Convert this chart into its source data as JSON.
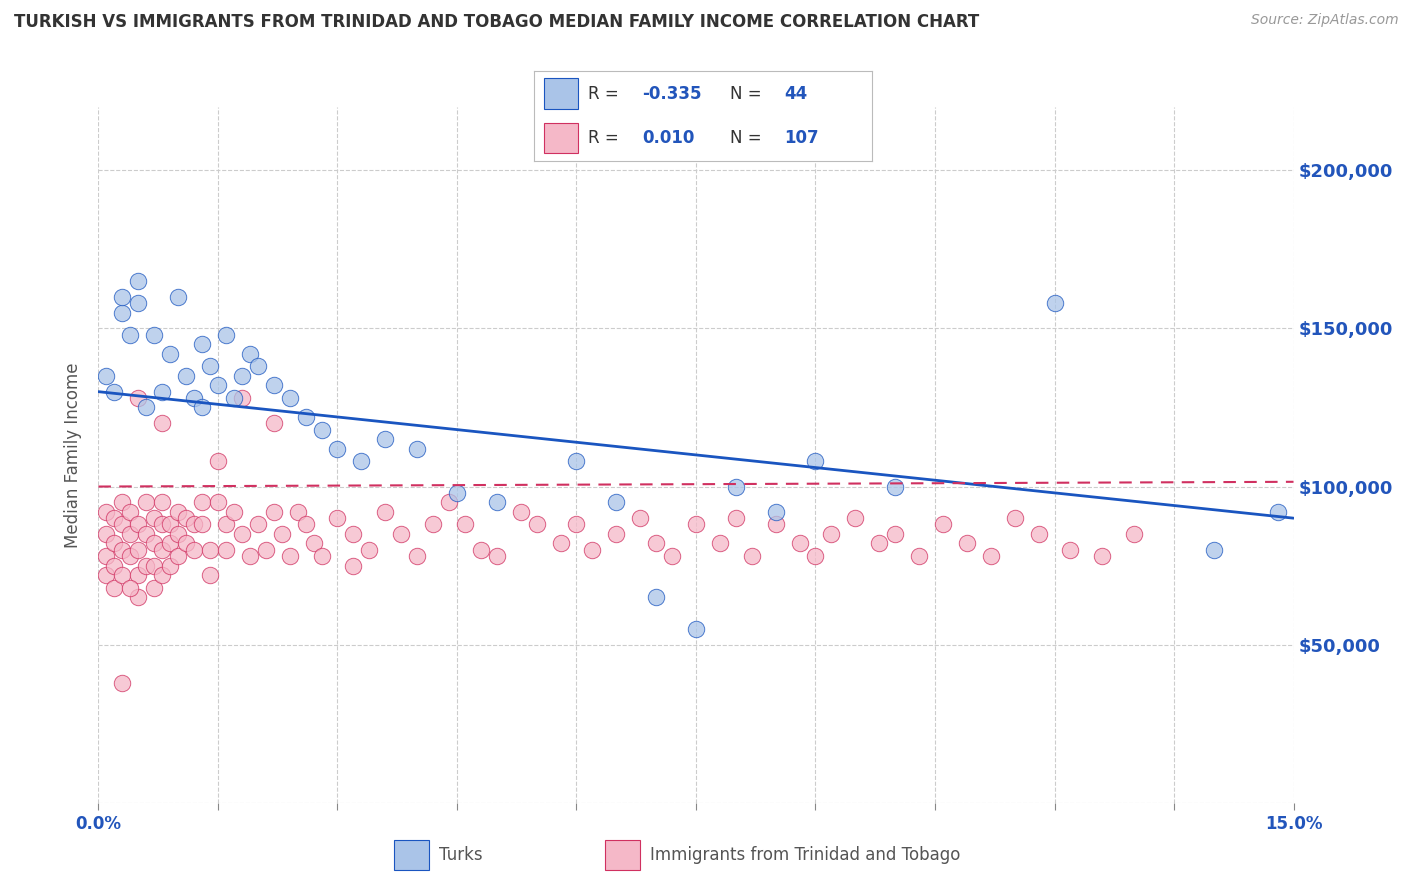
{
  "title": "TURKISH VS IMMIGRANTS FROM TRINIDAD AND TOBAGO MEDIAN FAMILY INCOME CORRELATION CHART",
  "source_text": "Source: ZipAtlas.com",
  "ylabel": "Median Family Income",
  "xlim": [
    0.0,
    0.15
  ],
  "ylim": [
    0,
    220000
  ],
  "yticks": [
    0,
    50000,
    100000,
    150000,
    200000
  ],
  "ytick_labels": [
    "",
    "$50,000",
    "$100,000",
    "$150,000",
    "$200,000"
  ],
  "xtick_labels": [
    "0.0%",
    "",
    "",
    "",
    "",
    "",
    "",
    "",
    "",
    "",
    "15.0%"
  ],
  "legend_R1": "-0.335",
  "legend_N1": "44",
  "legend_R2": "0.010",
  "legend_N2": "107",
  "label1": "Turks",
  "label2": "Immigrants from Trinidad and Tobago",
  "color1": "#aac4e8",
  "color2": "#f5b8c8",
  "line_color1": "#1a55c0",
  "line_color2": "#d03060",
  "background_color": "#ffffff",
  "grid_color": "#cccccc",
  "title_color": "#333333",
  "axis_color": "#2255bb",
  "turks_x": [
    0.001,
    0.002,
    0.003,
    0.003,
    0.004,
    0.005,
    0.005,
    0.006,
    0.007,
    0.008,
    0.009,
    0.01,
    0.011,
    0.012,
    0.013,
    0.013,
    0.014,
    0.015,
    0.016,
    0.017,
    0.018,
    0.019,
    0.02,
    0.022,
    0.024,
    0.026,
    0.028,
    0.03,
    0.033,
    0.036,
    0.04,
    0.045,
    0.05,
    0.06,
    0.065,
    0.07,
    0.075,
    0.08,
    0.085,
    0.09,
    0.1,
    0.12,
    0.14,
    0.148
  ],
  "turks_y": [
    135000,
    130000,
    155000,
    160000,
    148000,
    165000,
    158000,
    125000,
    148000,
    130000,
    142000,
    160000,
    135000,
    128000,
    125000,
    145000,
    138000,
    132000,
    148000,
    128000,
    135000,
    142000,
    138000,
    132000,
    128000,
    122000,
    118000,
    112000,
    108000,
    115000,
    112000,
    98000,
    95000,
    108000,
    95000,
    65000,
    55000,
    100000,
    92000,
    108000,
    100000,
    158000,
    80000,
    92000
  ],
  "tt_x": [
    0.001,
    0.001,
    0.001,
    0.001,
    0.002,
    0.002,
    0.002,
    0.002,
    0.003,
    0.003,
    0.003,
    0.003,
    0.004,
    0.004,
    0.004,
    0.005,
    0.005,
    0.005,
    0.005,
    0.006,
    0.006,
    0.006,
    0.007,
    0.007,
    0.007,
    0.007,
    0.008,
    0.008,
    0.008,
    0.008,
    0.009,
    0.009,
    0.009,
    0.01,
    0.01,
    0.01,
    0.011,
    0.011,
    0.012,
    0.012,
    0.013,
    0.013,
    0.014,
    0.014,
    0.015,
    0.015,
    0.016,
    0.016,
    0.017,
    0.018,
    0.019,
    0.02,
    0.021,
    0.022,
    0.023,
    0.024,
    0.025,
    0.026,
    0.027,
    0.028,
    0.03,
    0.032,
    0.034,
    0.036,
    0.038,
    0.04,
    0.042,
    0.044,
    0.046,
    0.048,
    0.05,
    0.053,
    0.055,
    0.058,
    0.06,
    0.062,
    0.065,
    0.068,
    0.07,
    0.072,
    0.075,
    0.078,
    0.08,
    0.082,
    0.085,
    0.088,
    0.09,
    0.092,
    0.095,
    0.098,
    0.1,
    0.103,
    0.106,
    0.109,
    0.112,
    0.115,
    0.118,
    0.122,
    0.126,
    0.13,
    0.032,
    0.018,
    0.022,
    0.008,
    0.005,
    0.004,
    0.003
  ],
  "tt_y": [
    92000,
    85000,
    78000,
    72000,
    90000,
    82000,
    75000,
    68000,
    95000,
    88000,
    80000,
    72000,
    92000,
    85000,
    78000,
    88000,
    80000,
    72000,
    65000,
    95000,
    85000,
    75000,
    90000,
    82000,
    75000,
    68000,
    95000,
    88000,
    80000,
    72000,
    88000,
    82000,
    75000,
    92000,
    85000,
    78000,
    90000,
    82000,
    88000,
    80000,
    95000,
    88000,
    80000,
    72000,
    108000,
    95000,
    88000,
    80000,
    92000,
    85000,
    78000,
    88000,
    80000,
    92000,
    85000,
    78000,
    92000,
    88000,
    82000,
    78000,
    90000,
    85000,
    80000,
    92000,
    85000,
    78000,
    88000,
    95000,
    88000,
    80000,
    78000,
    92000,
    88000,
    82000,
    88000,
    80000,
    85000,
    90000,
    82000,
    78000,
    88000,
    82000,
    90000,
    78000,
    88000,
    82000,
    78000,
    85000,
    90000,
    82000,
    85000,
    78000,
    88000,
    82000,
    78000,
    90000,
    85000,
    80000,
    78000,
    85000,
    75000,
    128000,
    120000,
    120000,
    128000,
    68000,
    38000
  ],
  "blue_line_x0": 0.0,
  "blue_line_y0": 130000,
  "blue_line_x1": 0.15,
  "blue_line_y1": 90000,
  "pink_line_x0": 0.0,
  "pink_line_y0": 100000,
  "pink_line_x1": 0.15,
  "pink_line_y1": 101500
}
